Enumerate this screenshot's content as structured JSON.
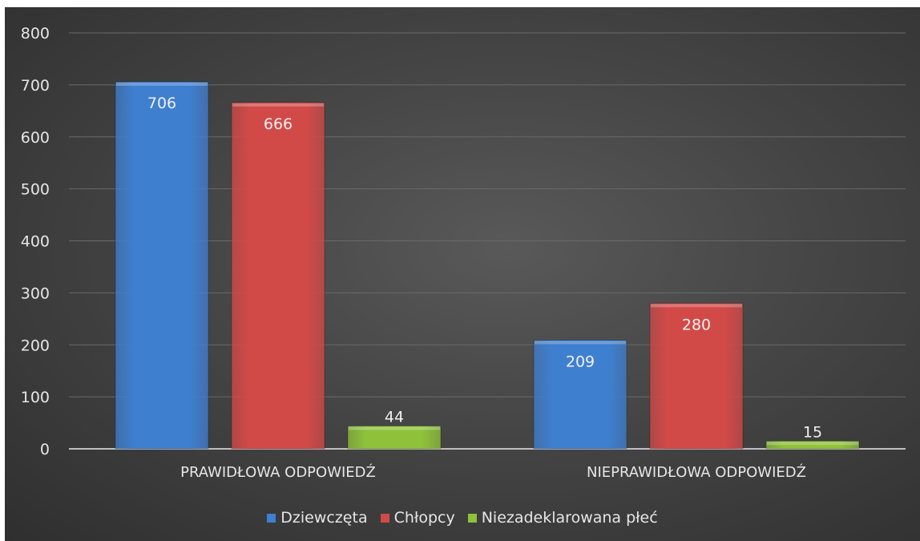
{
  "chart_data": {
    "type": "bar",
    "categories": [
      "PRAWIDŁOWA ODPOWIEDŹ",
      "NIEPRAWIDŁOWA ODPOWIEDŹ"
    ],
    "series": [
      {
        "name": "Dziewczęta",
        "values": [
          706,
          209
        ],
        "color": "#3f7fcf"
      },
      {
        "name": "Chłopcy",
        "values": [
          666,
          280
        ],
        "color": "#d24a48"
      },
      {
        "name": "Niezadeklarowana płeć",
        "values": [
          44,
          15
        ],
        "color": "#8fc23a"
      }
    ],
    "ylim": [
      0,
      800
    ],
    "yticks": [
      0,
      100,
      200,
      300,
      400,
      500,
      600,
      700,
      800
    ],
    "grid": true,
    "legend": "bottom"
  }
}
